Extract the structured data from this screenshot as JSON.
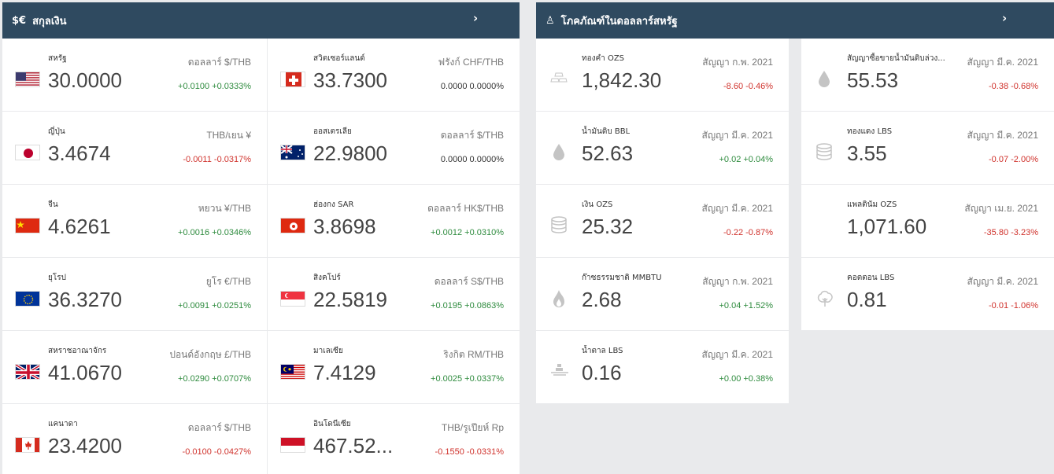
{
  "currency": {
    "header_icon": "$€",
    "title": "สกุลเงิน",
    "arrow": "›",
    "items": [
      {
        "name": "สหรัฐ",
        "pair": "ดอลลาร์ $/THB",
        "value": "30.0000",
        "change": "+0.0100 +0.0333%",
        "flag": "us"
      },
      {
        "name": "สวิตเซอร์แลนด์",
        "pair": "ฟรังก์ CHF/THB",
        "value": "33.7300",
        "change": "0.0000 0.0000%",
        "flag": "ch"
      },
      {
        "name": "ญี่ปุ่น",
        "pair": "THB/เยน ¥",
        "value": "3.4674",
        "change": "-0.0011 -0.0317%",
        "flag": "jp"
      },
      {
        "name": "ออสเตรเลีย",
        "pair": "ดอลลาร์ $/THB",
        "value": "22.9800",
        "change": "0.0000 0.0000%",
        "flag": "au"
      },
      {
        "name": "จีน",
        "pair": "หยวน ¥/THB",
        "value": "4.6261",
        "change": "+0.0016 +0.0346%",
        "flag": "cn"
      },
      {
        "name": "ฮ่องกง SAR",
        "pair": "ดอลลาร์ HK$/THB",
        "value": "3.8698",
        "change": "+0.0012 +0.0310%",
        "flag": "hk"
      },
      {
        "name": "ยุโรป",
        "pair": "ยูโร €/THB",
        "value": "36.3270",
        "change": "+0.0091 +0.0251%",
        "flag": "eu"
      },
      {
        "name": "สิงคโปร์",
        "pair": "ดอลลาร์ S$/THB",
        "value": "22.5819",
        "change": "+0.0195 +0.0863%",
        "flag": "sg"
      },
      {
        "name": "สหราชอาณาจักร",
        "pair": "ปอนด์อังกฤษ £/THB",
        "value": "41.0670",
        "change": "+0.0290 +0.0707%",
        "flag": "gb"
      },
      {
        "name": "มาเลเซีย",
        "pair": "ริงกิต RM/THB",
        "value": "7.4129",
        "change": "+0.0025 +0.0337%",
        "flag": "my"
      },
      {
        "name": "แคนาดา",
        "pair": "ดอลลาร์ $/THB",
        "value": "23.4200",
        "change": "-0.0100 -0.0427%",
        "flag": "ca"
      },
      {
        "name": "อินโดนีเซีย",
        "pair": "THB/รูเปียห์ Rp",
        "value": "467.52...",
        "change": "-0.1550 -0.0331%",
        "flag": "id"
      }
    ]
  },
  "commodities": {
    "header_icon": "♙",
    "title": "โภคภัณฑ์ในดอลลาร์สหรัฐ",
    "arrow": "›",
    "items": [
      {
        "name": "ทองคำ OZS",
        "pair": "สัญญา ก.พ. 2021",
        "value": "1,842.30",
        "change": "-8.60 -0.46%",
        "icon": "gold-bars-icon"
      },
      {
        "name": "สัญญาซื้อขายน้ำมันดิบล่วง...",
        "pair": "สัญญา มี.ค. 2021",
        "value": "55.53",
        "change": "-0.38 -0.68%",
        "icon": "oil-drop-icon"
      },
      {
        "name": "น้ำมันดิบ BBL",
        "pair": "สัญญา มี.ค. 2021",
        "value": "52.63",
        "change": "+0.02 +0.04%",
        "icon": "oil-drop-icon"
      },
      {
        "name": "ทองแดง LBS",
        "pair": "สัญญา มี.ค. 2021",
        "value": "3.55",
        "change": "-0.07 -2.00%",
        "icon": "coin-stack-icon"
      },
      {
        "name": "เงิน OZS",
        "pair": "สัญญา มี.ค. 2021",
        "value": "25.32",
        "change": "-0.22 -0.87%",
        "icon": "coin-stack-icon"
      },
      {
        "name": "แพลตินัม OZS",
        "pair": "สัญญา เม.ย. 2021",
        "value": "1,071.60",
        "change": "-35.80 -3.23%",
        "icon": ""
      },
      {
        "name": "ก๊าซธรรมชาติ MMBTU",
        "pair": "สัญญา ก.พ. 2021",
        "value": "2.68",
        "change": "+0.04 +1.52%",
        "icon": "flame-icon"
      },
      {
        "name": "คอตตอน LBS",
        "pair": "สัญญา มี.ค. 2021",
        "value": "0.81",
        "change": "-0.01 -1.06%",
        "icon": "cotton-icon"
      },
      {
        "name": "น้ำตาล LBS",
        "pair": "สัญญา มี.ค. 2021",
        "value": "0.16",
        "change": "+0.00 +0.38%",
        "icon": "sugar-icon"
      }
    ]
  }
}
